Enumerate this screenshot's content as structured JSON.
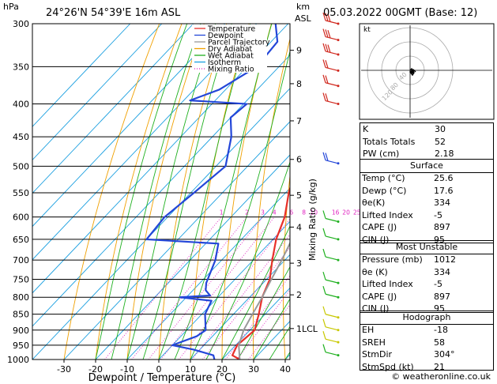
{
  "header": {
    "hpa_label": "hPa",
    "location": "24°26'N  54°39'E  16m  ASL",
    "km_label": "km",
    "asl_label": "ASL",
    "datetime": "05.03.2022  00GMT  (Base: 12)"
  },
  "legend": [
    {
      "label": "Temperature",
      "color": "#e8302a",
      "dash": false,
      "dot": false
    },
    {
      "label": "Dewpoint",
      "color": "#2346d8",
      "dash": false,
      "dot": false
    },
    {
      "label": "Parcel Trajectory",
      "color": "#999999",
      "dash": false,
      "dot": false
    },
    {
      "label": "Dry Adiabat",
      "color": "#f0a000",
      "dash": false,
      "dot": false
    },
    {
      "label": "Wet Adiabat",
      "color": "#1fb01f",
      "dash": false,
      "dot": false
    },
    {
      "label": "Isotherm",
      "color": "#1a9fe0",
      "dash": false,
      "dot": false
    },
    {
      "label": "Mixing Ratio",
      "color": "#e020c0",
      "dash": false,
      "dot": true
    }
  ],
  "chart_data": {
    "type": "line",
    "title": "Skew-T log-P diagram",
    "xlabel": "Dewpoint / Temperature (°C)",
    "ylabel": "hPa",
    "right_axis_label": "Mixing Ratio (g/kg)",
    "x_ticks": [
      -30,
      -20,
      -10,
      0,
      10,
      20,
      30,
      40
    ],
    "pressure_levels": [
      300,
      350,
      400,
      450,
      500,
      550,
      600,
      650,
      700,
      750,
      800,
      850,
      900,
      950,
      1000
    ],
    "km_ticks": [
      {
        "label": "9",
        "p": 330
      },
      {
        "label": "8",
        "p": 372
      },
      {
        "label": "7",
        "p": 425
      },
      {
        "label": "6",
        "p": 488
      },
      {
        "label": "5",
        "p": 555
      },
      {
        "label": "4",
        "p": 622
      },
      {
        "label": "3",
        "p": 708
      },
      {
        "label": "2",
        "p": 793
      },
      {
        "label": "1LCL",
        "p": 895
      }
    ],
    "mixing_ratio_labels": [
      "1",
      "2",
      "3",
      "4",
      "6",
      "8",
      "10",
      "16",
      "20",
      "25"
    ],
    "series": [
      {
        "name": "Temperature",
        "color": "#e8302a",
        "points": [
          [
            1000,
            25.6
          ],
          [
            985,
            22
          ],
          [
            950,
            20.5
          ],
          [
            925,
            21
          ],
          [
            900,
            21.5
          ],
          [
            850,
            18
          ],
          [
            800,
            14
          ],
          [
            750,
            11
          ],
          [
            700,
            6
          ],
          [
            650,
            1
          ],
          [
            600,
            -3
          ],
          [
            550,
            -9
          ],
          [
            500,
            -14.5
          ],
          [
            450,
            -20
          ],
          [
            400,
            -27
          ],
          [
            350,
            -38
          ],
          [
            320,
            -45
          ],
          [
            300,
            -48
          ]
        ]
      },
      {
        "name": "Dewpoint",
        "color": "#2346d8",
        "points": [
          [
            1000,
            17.6
          ],
          [
            985,
            16
          ],
          [
            965,
            8
          ],
          [
            950,
            0
          ],
          [
            920,
            5
          ],
          [
            900,
            6
          ],
          [
            850,
            1
          ],
          [
            810,
            -1
          ],
          [
            800,
            -12
          ],
          [
            795,
            -3
          ],
          [
            780,
            -6
          ],
          [
            760,
            -8
          ],
          [
            700,
            -12
          ],
          [
            660,
            -16
          ],
          [
            650,
            -40
          ],
          [
            600,
            -41
          ],
          [
            550,
            -39
          ],
          [
            500,
            -37
          ],
          [
            450,
            -44
          ],
          [
            420,
            -50
          ],
          [
            400,
            -49
          ],
          [
            395,
            -68
          ],
          [
            380,
            -62
          ],
          [
            350,
            -57
          ],
          [
            320,
            -58
          ],
          [
            300,
            -64
          ]
        ]
      },
      {
        "name": "Parcel Trajectory",
        "color": "#999999",
        "points": [
          [
            1000,
            25.6
          ],
          [
            950,
            21
          ],
          [
            900,
            18
          ],
          [
            850,
            16
          ],
          [
            800,
            14
          ],
          [
            750,
            11.5
          ],
          [
            700,
            9
          ],
          [
            650,
            6
          ],
          [
            600,
            2.5
          ],
          [
            550,
            -1.5
          ],
          [
            500,
            -6
          ],
          [
            450,
            -12
          ],
          [
            400,
            -19
          ],
          [
            350,
            -28
          ],
          [
            300,
            -38
          ]
        ]
      }
    ]
  },
  "indices": [
    {
      "label": "K",
      "value": "30"
    },
    {
      "label": "Totals Totals",
      "value": "52"
    },
    {
      "label": "PW (cm)",
      "value": "2.18"
    }
  ],
  "surface": {
    "title": "Surface",
    "rows": [
      {
        "label": "Temp (°C)",
        "value": "25.6"
      },
      {
        "label": "Dewp (°C)",
        "value": "17.6"
      },
      {
        "label": "θe(K)",
        "value": "334"
      },
      {
        "label": "Lifted Index",
        "value": "-5"
      },
      {
        "label": "CAPE (J)",
        "value": "897"
      },
      {
        "label": "CIN (J)",
        "value": "95"
      }
    ]
  },
  "most_unstable": {
    "title": "Most Unstable",
    "rows": [
      {
        "label": "Pressure (mb)",
        "value": "1012"
      },
      {
        "label": "θe (K)",
        "value": "334"
      },
      {
        "label": "Lifted Index",
        "value": "-5"
      },
      {
        "label": "CAPE (J)",
        "value": "897"
      },
      {
        "label": "CIN (J)",
        "value": "95"
      }
    ]
  },
  "hodograph": {
    "title": "Hodograph",
    "corner_label": "kt",
    "ring_labels": [
      "40",
      "80",
      "120"
    ],
    "rows": [
      {
        "label": "EH",
        "value": "-18"
      },
      {
        "label": "SREH",
        "value": "58"
      },
      {
        "label": "StmDir",
        "value": "304°"
      },
      {
        "label": "StmSpd (kt)",
        "value": "21"
      }
    ]
  },
  "footer": "© weatheronline.co.uk"
}
